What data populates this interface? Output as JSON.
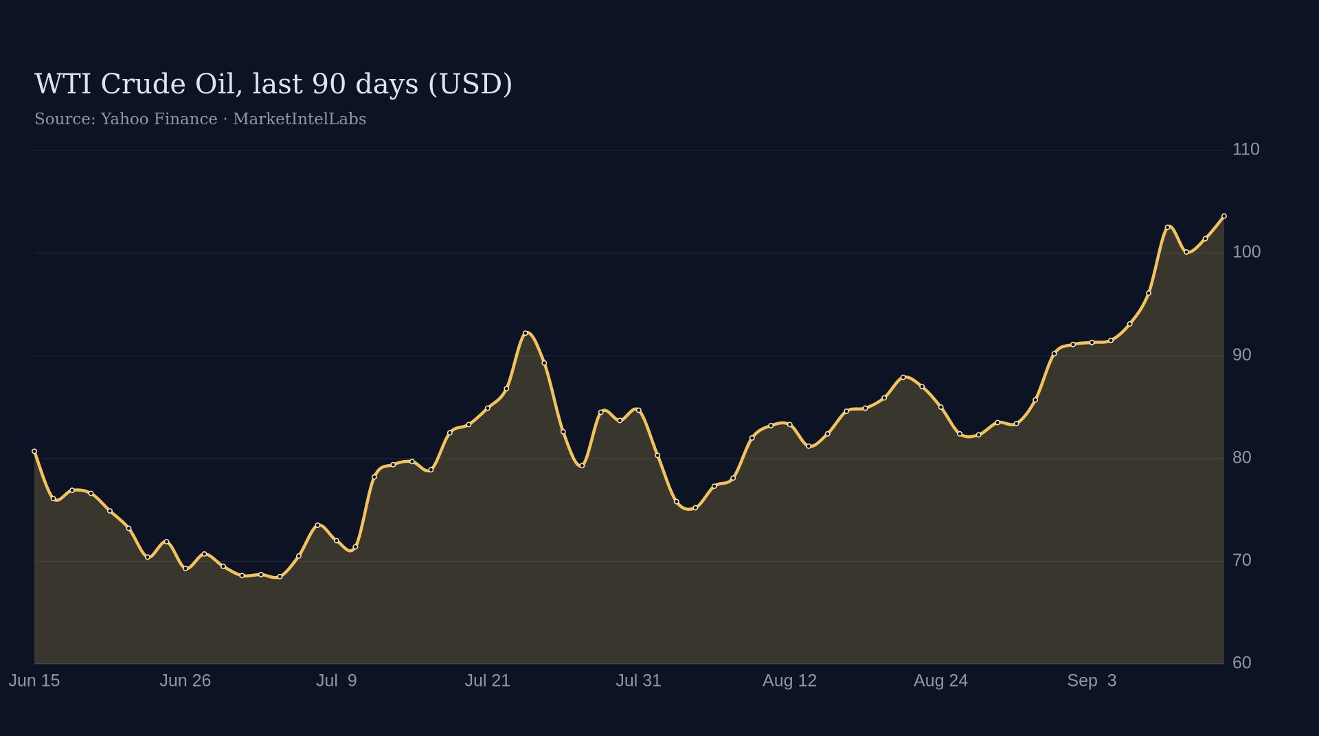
{
  "chart_data": {
    "type": "line",
    "title": "WTI Crude Oil, last 90 days (USD)",
    "subtitle": "Source: Yahoo Finance · MarketIntelLabs",
    "categories": [
      "Jun 15",
      null,
      null,
      null,
      null,
      null,
      null,
      null,
      "Jun 26",
      null,
      null,
      null,
      null,
      null,
      null,
      null,
      "Jul  9",
      null,
      null,
      null,
      null,
      null,
      null,
      null,
      "Jul 21",
      null,
      null,
      null,
      null,
      null,
      null,
      null,
      "Jul 31",
      null,
      null,
      null,
      null,
      null,
      null,
      null,
      "Aug 12",
      null,
      null,
      null,
      null,
      null,
      null,
      null,
      "Aug 24",
      null,
      null,
      null,
      null,
      null,
      null,
      null,
      "Sep  3",
      null,
      null,
      null,
      null,
      null,
      null,
      null
    ],
    "series": [
      {
        "name": "WTI Crude Oil",
        "color": "#f2c25c",
        "values": [
          80.7,
          76.1,
          76.9,
          76.6,
          74.9,
          73.2,
          70.4,
          71.9,
          69.3,
          70.7,
          69.5,
          68.6,
          68.7,
          68.5,
          70.5,
          73.5,
          72.0,
          71.4,
          78.2,
          79.4,
          79.7,
          78.9,
          82.5,
          83.3,
          84.9,
          86.8,
          92.2,
          89.3,
          82.6,
          79.3,
          84.5,
          83.7,
          84.7,
          80.3,
          75.8,
          75.2,
          77.3,
          78.1,
          82.0,
          83.2,
          83.3,
          81.2,
          82.4,
          84.6,
          84.9,
          85.9,
          87.9,
          87.0,
          85.0,
          82.4,
          82.3,
          83.5,
          83.4,
          85.7,
          90.2,
          91.1,
          91.3,
          91.5,
          93.1,
          96.1,
          102.5,
          100.1,
          101.4,
          103.6
        ]
      }
    ],
    "ylim": [
      60,
      110
    ],
    "yticks": [
      60,
      70,
      80,
      90,
      100,
      110
    ],
    "grid": true,
    "area": true
  }
}
